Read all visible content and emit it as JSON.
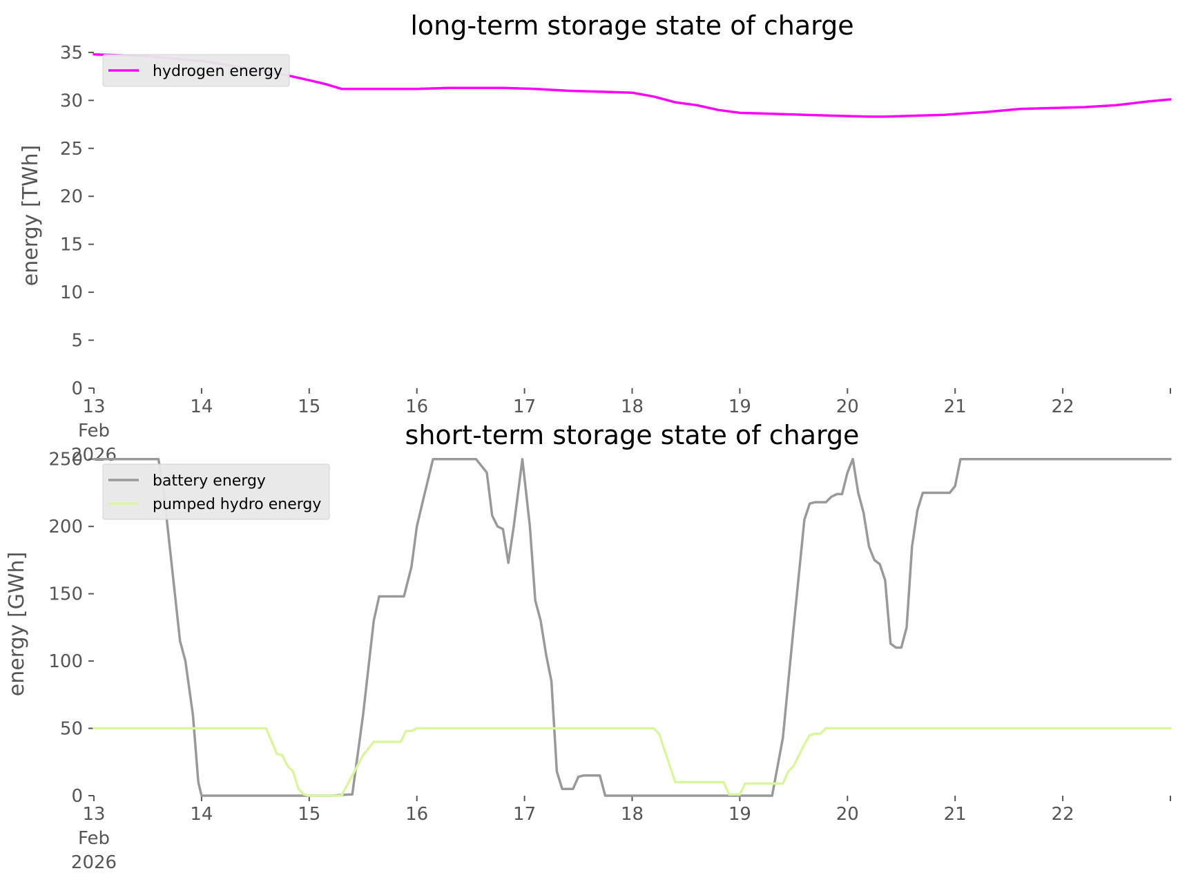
{
  "chart_data": [
    {
      "type": "line",
      "title": "long-term storage state of charge",
      "xlabel": "",
      "ylabel": "energy [TWh]",
      "ylim": [
        0,
        36
      ],
      "yticks": [
        0,
        5,
        10,
        15,
        20,
        25,
        30,
        35
      ],
      "xlim": [
        13,
        23
      ],
      "xticks": [
        {
          "x": 13,
          "lines": [
            "13",
            "Feb",
            "2026"
          ]
        },
        {
          "x": 14,
          "lines": [
            "14"
          ]
        },
        {
          "x": 15,
          "lines": [
            "15"
          ]
        },
        {
          "x": 16,
          "lines": [
            "16"
          ]
        },
        {
          "x": 17,
          "lines": [
            "17"
          ]
        },
        {
          "x": 18,
          "lines": [
            "18"
          ]
        },
        {
          "x": 19,
          "lines": [
            "19"
          ]
        },
        {
          "x": 20,
          "lines": [
            "20"
          ]
        },
        {
          "x": 21,
          "lines": [
            "21"
          ]
        },
        {
          "x": 22,
          "lines": [
            "22"
          ]
        }
      ],
      "grid": false,
      "legend_position": "top-left",
      "series": [
        {
          "name": "hydrogen energy",
          "color": "#ff00ff",
          "x": [
            13.0,
            13.5,
            14.0,
            14.3,
            14.6,
            14.8,
            15.0,
            15.15,
            15.3,
            15.5,
            15.8,
            16.0,
            16.3,
            16.5,
            16.8,
            17.1,
            17.4,
            17.7,
            18.0,
            18.2,
            18.4,
            18.6,
            18.8,
            19.0,
            19.3,
            19.6,
            19.9,
            20.2,
            20.35,
            20.6,
            20.9,
            21.3,
            21.6,
            21.9,
            22.2,
            22.5,
            22.8,
            23.0
          ],
          "y": [
            34.8,
            34.6,
            34.1,
            33.6,
            33.0,
            32.6,
            32.1,
            31.7,
            31.2,
            31.2,
            31.2,
            31.2,
            31.3,
            31.3,
            31.3,
            31.2,
            31.0,
            30.9,
            30.8,
            30.4,
            29.8,
            29.5,
            29.0,
            28.7,
            28.6,
            28.5,
            28.4,
            28.3,
            28.3,
            28.4,
            28.5,
            28.8,
            29.1,
            29.2,
            29.3,
            29.5,
            29.9,
            30.1
          ]
        }
      ]
    },
    {
      "type": "line",
      "title": "short-term storage state of charge",
      "xlabel": "",
      "ylabel": "energy [GWh]",
      "ylim": [
        0,
        255
      ],
      "yticks": [
        0,
        50,
        100,
        150,
        200,
        250
      ],
      "xlim": [
        13,
        23
      ],
      "xticks": [
        {
          "x": 13,
          "lines": [
            "13",
            "Feb",
            "2026"
          ]
        },
        {
          "x": 14,
          "lines": [
            "14"
          ]
        },
        {
          "x": 15,
          "lines": [
            "15"
          ]
        },
        {
          "x": 16,
          "lines": [
            "16"
          ]
        },
        {
          "x": 17,
          "lines": [
            "17"
          ]
        },
        {
          "x": 18,
          "lines": [
            "18"
          ]
        },
        {
          "x": 19,
          "lines": [
            "19"
          ]
        },
        {
          "x": 20,
          "lines": [
            "20"
          ]
        },
        {
          "x": 21,
          "lines": [
            "21"
          ]
        },
        {
          "x": 22,
          "lines": [
            "22"
          ]
        }
      ],
      "grid": false,
      "legend_position": "top-left",
      "series": [
        {
          "name": "battery energy",
          "color": "#999999",
          "x": [
            13.0,
            13.6,
            13.65,
            13.8,
            13.85,
            13.92,
            13.97,
            14.0,
            15.2,
            15.4,
            15.5,
            15.6,
            15.65,
            15.7,
            15.88,
            15.95,
            16.0,
            16.05,
            16.15,
            16.5,
            16.55,
            16.65,
            16.7,
            16.75,
            16.8,
            16.85,
            16.9,
            16.98,
            17.05,
            17.1,
            17.15,
            17.2,
            17.25,
            17.3,
            17.35,
            17.4,
            17.45,
            17.5,
            17.55,
            17.6,
            17.65,
            17.7,
            17.75,
            19.3,
            19.4,
            19.5,
            19.6,
            19.65,
            19.7,
            19.8,
            19.85,
            19.9,
            19.95,
            20.0,
            20.05,
            20.1,
            20.15,
            20.2,
            20.25,
            20.3,
            20.35,
            20.4,
            20.45,
            20.5,
            20.55,
            20.6,
            20.65,
            20.7,
            20.75,
            20.95,
            21.0,
            21.05,
            21.1,
            23.0
          ],
          "y": [
            250,
            250,
            225,
            115,
            100,
            60,
            10,
            0,
            0,
            1,
            60,
            130,
            148,
            148,
            148,
            170,
            200,
            217,
            250,
            250,
            250,
            240,
            208,
            200,
            198,
            173,
            200,
            250,
            200,
            145,
            130,
            105,
            85,
            18,
            5,
            5,
            5,
            14,
            15,
            15,
            15,
            15,
            0,
            0,
            43,
            125,
            205,
            217,
            218,
            218,
            222,
            224,
            224,
            240,
            250,
            225,
            210,
            185,
            175,
            172,
            160,
            113,
            110,
            110,
            125,
            185,
            212,
            225,
            225,
            225,
            230,
            250,
            250,
            250
          ]
        },
        {
          "name": "pumped hydro energy",
          "color": "#d9f5a0",
          "x": [
            13.0,
            14.6,
            14.7,
            14.75,
            14.8,
            14.85,
            14.9,
            14.95,
            15.0,
            15.3,
            15.4,
            15.5,
            15.6,
            15.65,
            15.7,
            15.75,
            15.85,
            15.9,
            15.95,
            16.0,
            18.2,
            18.25,
            18.4,
            18.5,
            18.85,
            18.9,
            19.0,
            19.05,
            19.1,
            19.4,
            19.45,
            19.5,
            19.6,
            19.65,
            19.7,
            19.75,
            19.8,
            23.0
          ],
          "y": [
            50,
            50,
            31,
            30,
            22,
            18,
            5,
            1,
            0,
            0,
            15,
            30,
            40,
            40,
            40,
            40,
            40,
            48,
            48,
            50,
            50,
            46,
            10,
            10,
            10,
            1,
            1,
            9,
            9,
            9,
            18,
            22,
            38,
            45,
            46,
            46,
            50,
            50
          ]
        }
      ]
    }
  ]
}
